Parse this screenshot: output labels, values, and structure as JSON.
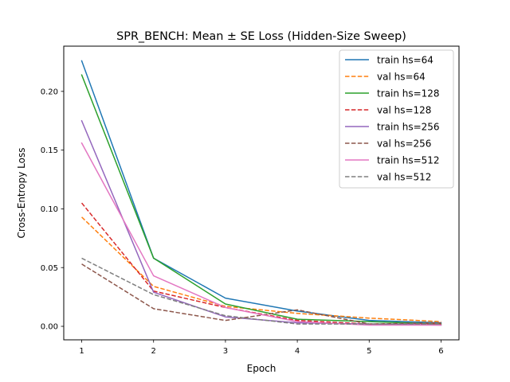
{
  "chart_data": {
    "type": "line",
    "title": "SPR_BENCH: Mean ± SE Loss (Hidden-Size Sweep)",
    "xlabel": "Epoch",
    "ylabel": "Cross-Entropy Loss",
    "x": [
      1,
      2,
      3,
      4,
      5,
      6
    ],
    "xlim": [
      0.75,
      6.25
    ],
    "ylim": [
      -0.0115,
      0.2385
    ],
    "xticks": [
      1,
      2,
      3,
      4,
      5,
      6
    ],
    "yticks": [
      0.0,
      0.05,
      0.1,
      0.15,
      0.2
    ],
    "ytick_labels": [
      "0.00",
      "0.05",
      "0.10",
      "0.15",
      "0.20"
    ],
    "legend_position": "top-right",
    "grid": false,
    "series": [
      {
        "name": "train hs=64",
        "color": "#1f77b4",
        "dash": "solid",
        "values": [
          0.226,
          0.058,
          0.024,
          0.013,
          0.005,
          0.003
        ]
      },
      {
        "name": "val hs=64",
        "color": "#ff7f0e",
        "dash": "dashed",
        "values": [
          0.093,
          0.034,
          0.017,
          0.011,
          0.007,
          0.004
        ]
      },
      {
        "name": "train hs=128",
        "color": "#2ca02c",
        "dash": "solid",
        "values": [
          0.214,
          0.058,
          0.019,
          0.006,
          0.004,
          0.002
        ]
      },
      {
        "name": "val hs=128",
        "color": "#d62728",
        "dash": "dashed",
        "values": [
          0.105,
          0.03,
          0.016,
          0.005,
          0.002,
          0.002
        ]
      },
      {
        "name": "train hs=256",
        "color": "#9467bd",
        "dash": "solid",
        "values": [
          0.175,
          0.029,
          0.008,
          0.003,
          0.002,
          0.001
        ]
      },
      {
        "name": "val hs=256",
        "color": "#8c564b",
        "dash": "dashed",
        "values": [
          0.053,
          0.015,
          0.005,
          0.014,
          0.002,
          0.003
        ]
      },
      {
        "name": "train hs=512",
        "color": "#e377c2",
        "dash": "solid",
        "values": [
          0.156,
          0.043,
          0.016,
          0.004,
          0.001,
          0.001
        ]
      },
      {
        "name": "val hs=512",
        "color": "#7f7f7f",
        "dash": "dashed",
        "values": [
          0.058,
          0.027,
          0.009,
          0.002,
          0.002,
          0.002
        ]
      }
    ]
  }
}
